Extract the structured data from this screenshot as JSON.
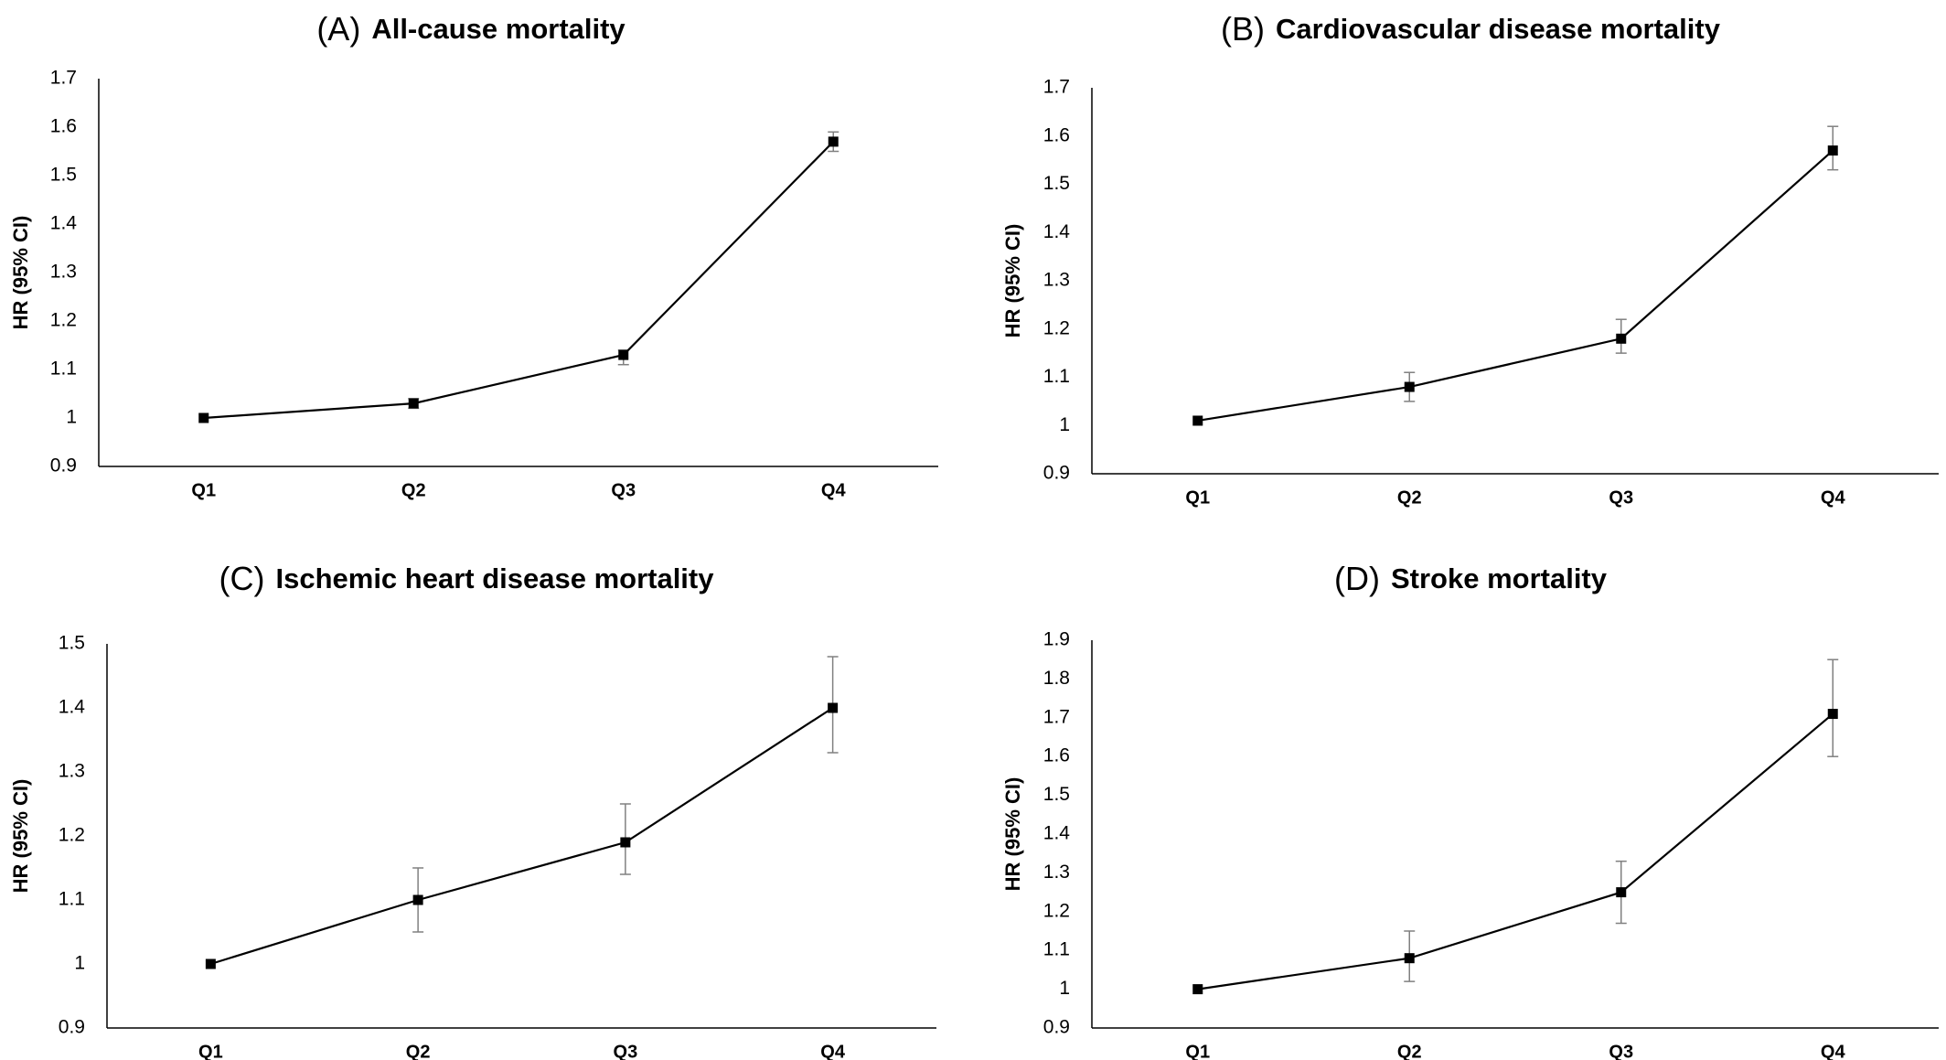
{
  "chart_data": [
    {
      "type": "line",
      "panel_letter": "(A)",
      "title": "All-cause mortality",
      "ylabel": "HR (95% CI)",
      "xlabel": "",
      "categories": [
        "Q1",
        "Q2",
        "Q3",
        "Q4"
      ],
      "values": [
        1.0,
        1.03,
        1.13,
        1.57
      ],
      "ci_lower": [
        1.0,
        1.02,
        1.11,
        1.55
      ],
      "ci_upper": [
        1.0,
        1.04,
        1.14,
        1.59
      ],
      "ylim": [
        0.9,
        1.7
      ],
      "yticks": [
        "0.9",
        "1",
        "1.1",
        "1.2",
        "1.3",
        "1.4",
        "1.5",
        "1.6",
        "1.7"
      ],
      "grid": false,
      "legend": "none"
    },
    {
      "type": "line",
      "panel_letter": "(B)",
      "title": "Cardiovascular disease mortality",
      "ylabel": "HR (95% CI)",
      "xlabel": "",
      "categories": [
        "Q1",
        "Q2",
        "Q3",
        "Q4"
      ],
      "values": [
        1.01,
        1.08,
        1.18,
        1.57
      ],
      "ci_lower": [
        1.01,
        1.05,
        1.15,
        1.53
      ],
      "ci_upper": [
        1.01,
        1.11,
        1.22,
        1.62
      ],
      "ylim": [
        0.9,
        1.7
      ],
      "yticks": [
        "0.9",
        "1",
        "1.1",
        "1.2",
        "1.3",
        "1.4",
        "1.5",
        "1.6",
        "1.7"
      ],
      "grid": false,
      "legend": "none"
    },
    {
      "type": "line",
      "panel_letter": "(C)",
      "title": "Ischemic heart disease mortality",
      "ylabel": "HR (95% CI)",
      "xlabel": "",
      "categories": [
        "Q1",
        "Q2",
        "Q3",
        "Q4"
      ],
      "values": [
        1.0,
        1.1,
        1.19,
        1.4
      ],
      "ci_lower": [
        1.0,
        1.05,
        1.14,
        1.33
      ],
      "ci_upper": [
        1.0,
        1.15,
        1.25,
        1.48
      ],
      "ylim": [
        0.9,
        1.5
      ],
      "yticks": [
        "0.9",
        "1",
        "1.1",
        "1.2",
        "1.3",
        "1.4",
        "1.5"
      ],
      "grid": false,
      "legend": "none"
    },
    {
      "type": "line",
      "panel_letter": "(D)",
      "title": "Stroke mortality",
      "ylabel": "HR (95% CI)",
      "xlabel": "",
      "categories": [
        "Q1",
        "Q2",
        "Q3",
        "Q4"
      ],
      "values": [
        1.0,
        1.08,
        1.25,
        1.71
      ],
      "ci_lower": [
        1.0,
        1.02,
        1.17,
        1.6
      ],
      "ci_upper": [
        1.0,
        1.15,
        1.33,
        1.85
      ],
      "ylim": [
        0.9,
        1.9
      ],
      "yticks": [
        "0.9",
        "1",
        "1.1",
        "1.2",
        "1.3",
        "1.4",
        "1.5",
        "1.6",
        "1.7",
        "1.8",
        "1.9"
      ],
      "grid": false,
      "legend": "none"
    }
  ],
  "colors": {
    "line": "#000000",
    "marker": "#000000",
    "error_bar": "#808080",
    "axis": "#000000"
  }
}
